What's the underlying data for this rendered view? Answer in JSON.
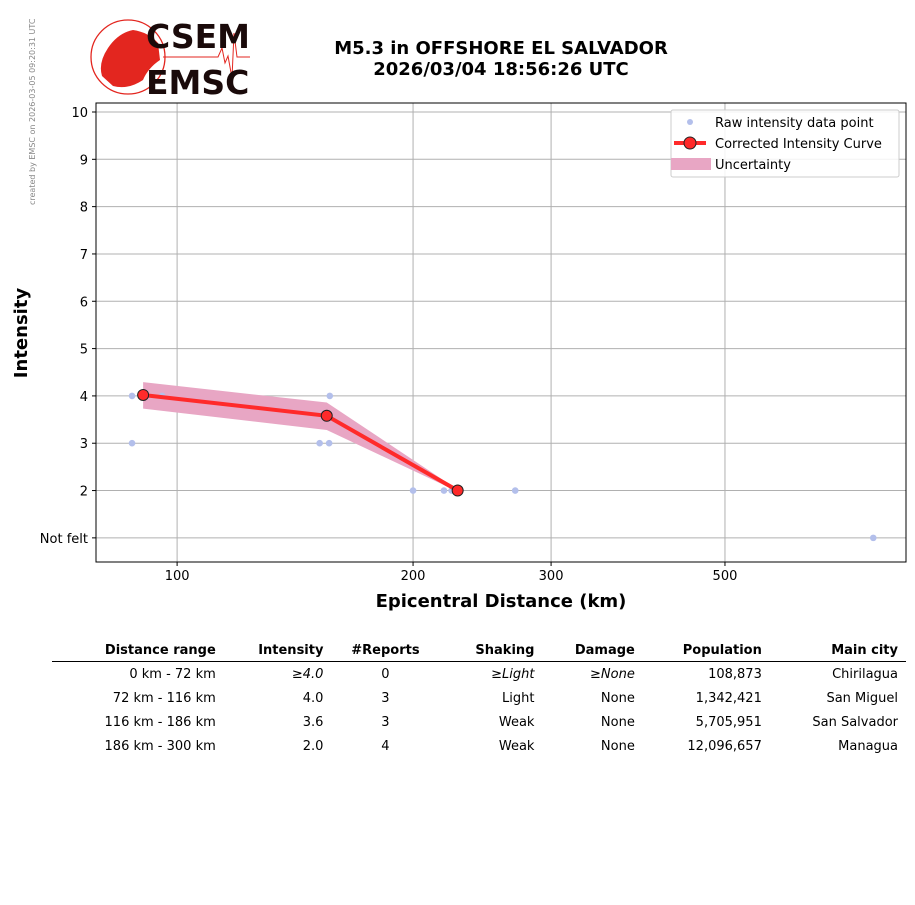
{
  "watermark": "created by EMSC on 2026-03-05 09:20:31 UTC",
  "logo": {
    "top": "CSEM",
    "bottom": "EMSC"
  },
  "title": {
    "line1": "M5.3 in OFFSHORE EL SALVADOR",
    "line2": "2026/03/04 18:56:26 UTC"
  },
  "colors": {
    "raw": "#b3bfeb",
    "curve": "#ff2a2a",
    "uncertainty": "#e8a6c4",
    "grid": "#b0b0b0"
  },
  "chart_data": {
    "type": "line",
    "xlabel": "Epicentral Distance (km)",
    "ylabel": "Intensity",
    "xscale": "log",
    "xlim": [
      78.8,
      851
    ],
    "ylim": [
      0.49,
      10.19
    ],
    "xticks": [
      100,
      200,
      300,
      500
    ],
    "yticks": [
      {
        "v": 1,
        "label": "Not felt"
      },
      {
        "v": 2,
        "label": "2"
      },
      {
        "v": 3,
        "label": "3"
      },
      {
        "v": 4,
        "label": "4"
      },
      {
        "v": 5,
        "label": "5"
      },
      {
        "v": 6,
        "label": "6"
      },
      {
        "v": 7,
        "label": "7"
      },
      {
        "v": 8,
        "label": "8"
      },
      {
        "v": 9,
        "label": "9"
      },
      {
        "v": 10,
        "label": "10"
      }
    ],
    "grid": true,
    "legend_position": "top-right",
    "legend": [
      "Raw intensity data point",
      "Corrected Intensity Curve",
      "Uncertainty"
    ],
    "raw_points": [
      [
        87.6,
        4
      ],
      [
        87.6,
        3
      ],
      [
        95.7,
        4
      ],
      [
        152,
        3
      ],
      [
        156.3,
        3
      ],
      [
        156.6,
        4
      ],
      [
        200,
        2
      ],
      [
        219,
        2
      ],
      [
        224,
        2
      ],
      [
        270,
        2
      ],
      [
        773,
        1
      ]
    ],
    "curve": [
      [
        90.5,
        4.02
      ],
      [
        155.2,
        3.58
      ],
      [
        228,
        2.0
      ]
    ],
    "uncertainty": {
      "upper": [
        4.29,
        3.86,
        2.02
      ],
      "lower": [
        3.73,
        3.28,
        1.98
      ]
    }
  },
  "table": {
    "headers": [
      "Distance range",
      "Intensity",
      "#Reports",
      "Shaking",
      "Damage",
      "Population",
      "Main city"
    ],
    "rows": [
      [
        "0 km -   72 km",
        "≥4.0",
        "0",
        "≥Light",
        "≥None",
        "108,873",
        "Chirilagua"
      ],
      [
        "72 km -  116 km",
        "4.0",
        "3",
        "Light",
        "None",
        "1,342,421",
        "San Miguel"
      ],
      [
        "116 km -  186 km",
        "3.6",
        "3",
        "Weak",
        "None",
        "5,705,951",
        "San Salvador"
      ],
      [
        "186 km -  300 km",
        "2.0",
        "4",
        "Weak",
        "None",
        "12,096,657",
        "Managua"
      ]
    ]
  }
}
